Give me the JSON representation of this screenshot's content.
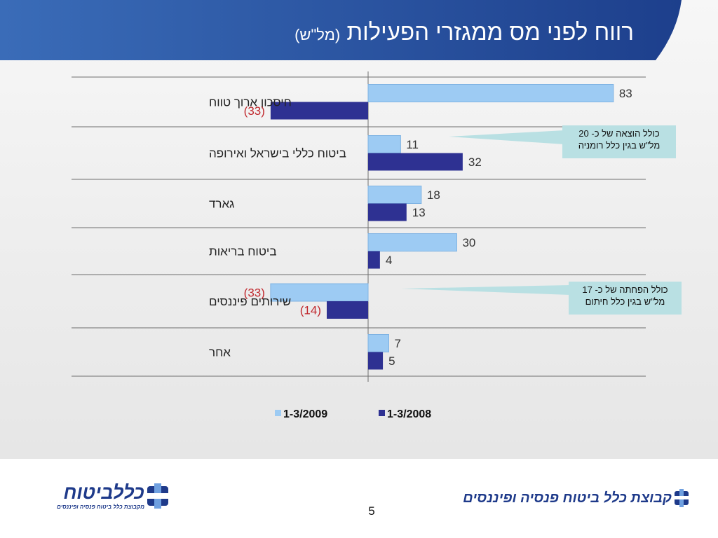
{
  "header": {
    "title_main": "רווח לפני מס ממגזרי הפעילות",
    "title_unit": "(מל\"ש)",
    "colors": {
      "dark": "#1d3f8c",
      "light": "#3a6cb8"
    }
  },
  "chart_data": {
    "type": "bar",
    "orientation": "horizontal",
    "categories": [
      "חיסכון ארוך טווח",
      "ביטוח כללי בישראל ואירופה",
      "גארד",
      "ביטוח בריאות",
      "שירותים פיננסים",
      "אחר"
    ],
    "series": [
      {
        "name": "1-3/2009",
        "color": "#9dcbf3",
        "values": [
          83,
          11,
          18,
          30,
          -33,
          7
        ],
        "labels": [
          "83",
          "11",
          "18",
          "30",
          "(33)",
          "7"
        ]
      },
      {
        "name": "1-3/2008",
        "color": "#2e3192",
        "values": [
          -33,
          32,
          13,
          4,
          -14,
          5
        ],
        "labels": [
          "(33)",
          "32",
          "13",
          "4",
          "(14)",
          "5"
        ]
      }
    ],
    "xlim": [
      -35,
      85
    ],
    "grid": "horizontal separators",
    "legend_position": "bottom",
    "negative_label_color": "#c0282d"
  },
  "annotations": [
    {
      "line1": "כולל הוצאה של כ- 20",
      "line2": "מל\"ש בגין כלל רומניה"
    },
    {
      "line1": "כולל הפחתה של כ- 17",
      "line2": "מל\"ש בגין כלל חיתום"
    }
  ],
  "footer": {
    "left_brand": "כללביטוח",
    "left_sub": "מקבוצת כלל ביטוח פנסיה ופיננסים",
    "right_brand": "קבוצת כלל ביטוח פנסיה ופיננסים",
    "page_number": "5"
  }
}
